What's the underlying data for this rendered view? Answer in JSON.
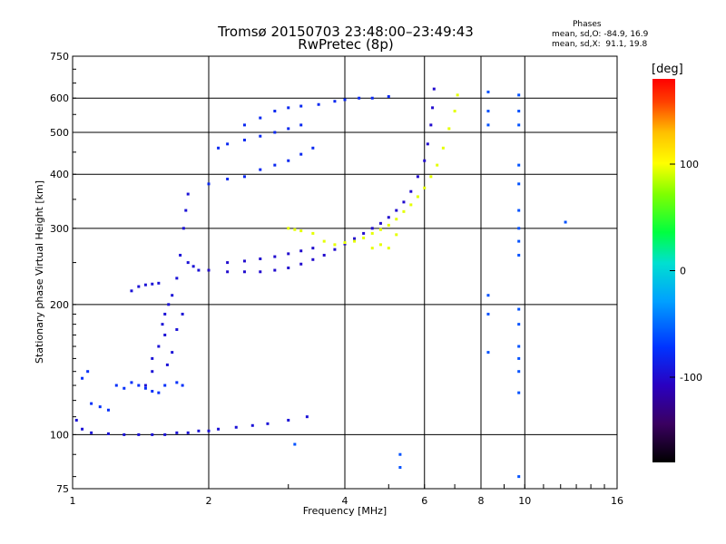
{
  "chart_data": {
    "type": "scatter",
    "title": "Tromsø 20150703 23:48:00–23:49:43",
    "subtitle": "RwPretec (8p)",
    "xlabel": "Frequency [MHz]",
    "ylabel": "Stationary phase Virtual Height [km]",
    "xscale": "log",
    "yscale": "log",
    "xlim": [
      1,
      16
    ],
    "ylim": [
      75,
      750
    ],
    "xticks": [
      1,
      2,
      4,
      6,
      8,
      10,
      16
    ],
    "yticks": [
      75,
      100,
      200,
      300,
      400,
      500,
      600,
      750
    ],
    "grid": true,
    "colorbar": {
      "label": "[deg]",
      "ticks": [
        100,
        0,
        -100
      ],
      "range": [
        -180,
        180
      ],
      "colormap": "rainbow (black-purple-blue-cyan-green-yellow-red)"
    },
    "phase_stats": {
      "heading": "Phases",
      "o_line": "mean, sd,O: -84.9, 16.9",
      "x_line": "mean, sd,X:  91.1, 19.8"
    },
    "series": [
      {
        "role": "E-layer trace (blue)",
        "phase": -95,
        "points": [
          [
            1.02,
            108
          ],
          [
            1.05,
            103
          ],
          [
            1.1,
            101
          ],
          [
            1.2,
            100.5
          ],
          [
            1.3,
            100
          ],
          [
            1.4,
            100
          ],
          [
            1.5,
            100
          ],
          [
            1.6,
            100
          ],
          [
            1.7,
            101
          ],
          [
            1.8,
            101
          ],
          [
            1.9,
            102
          ],
          [
            2.0,
            102
          ],
          [
            2.1,
            103
          ],
          [
            2.3,
            104
          ],
          [
            2.5,
            105
          ],
          [
            2.7,
            106
          ],
          [
            3.0,
            108
          ],
          [
            3.3,
            110
          ]
        ]
      },
      {
        "role": "Es / low-frequency returns (cyan-blue)",
        "phase": -75,
        "points": [
          [
            1.05,
            135
          ],
          [
            1.08,
            140
          ],
          [
            1.1,
            118
          ],
          [
            1.15,
            116
          ],
          [
            1.2,
            114
          ],
          [
            1.25,
            130
          ],
          [
            1.3,
            128
          ],
          [
            1.35,
            132
          ],
          [
            1.4,
            130
          ],
          [
            1.45,
            128
          ],
          [
            1.5,
            126
          ],
          [
            1.55,
            125
          ],
          [
            1.6,
            130
          ],
          [
            1.7,
            132
          ],
          [
            1.75,
            130
          ]
        ]
      },
      {
        "role": "F1 rising branch (blue)",
        "phase": -95,
        "points": [
          [
            1.35,
            215
          ],
          [
            1.4,
            220
          ],
          [
            1.45,
            222
          ],
          [
            1.5,
            223
          ],
          [
            1.55,
            224
          ],
          [
            1.58,
            180
          ],
          [
            1.6,
            190
          ],
          [
            1.63,
            200
          ],
          [
            1.66,
            210
          ],
          [
            1.7,
            230
          ],
          [
            1.73,
            260
          ],
          [
            1.76,
            300
          ],
          [
            1.78,
            330
          ],
          [
            1.8,
            360
          ],
          [
            1.5,
            150
          ],
          [
            1.55,
            160
          ],
          [
            1.6,
            170
          ],
          [
            1.5,
            140
          ],
          [
            1.45,
            130
          ],
          [
            1.62,
            145
          ],
          [
            1.66,
            155
          ],
          [
            1.7,
            175
          ],
          [
            1.75,
            190
          ],
          [
            1.8,
            250
          ],
          [
            1.85,
            245
          ],
          [
            1.9,
            240
          ]
        ]
      },
      {
        "role": "F-layer trace, O-mode (purple-blue)",
        "phase": -100,
        "points": [
          [
            2.0,
            240
          ],
          [
            2.2,
            238
          ],
          [
            2.4,
            238
          ],
          [
            2.6,
            238
          ],
          [
            2.8,
            240
          ],
          [
            3.0,
            243
          ],
          [
            3.2,
            248
          ],
          [
            3.4,
            254
          ],
          [
            3.6,
            260
          ],
          [
            3.8,
            268
          ],
          [
            4.0,
            276
          ],
          [
            4.2,
            284
          ],
          [
            4.4,
            292
          ],
          [
            4.6,
            300
          ],
          [
            4.8,
            308
          ],
          [
            5.0,
            318
          ],
          [
            5.2,
            330
          ],
          [
            5.4,
            345
          ],
          [
            5.6,
            365
          ],
          [
            5.8,
            395
          ],
          [
            6.0,
            430
          ],
          [
            6.1,
            470
          ],
          [
            6.2,
            520
          ],
          [
            6.25,
            570
          ],
          [
            6.3,
            630
          ],
          [
            2.2,
            250
          ],
          [
            2.4,
            252
          ],
          [
            2.6,
            255
          ],
          [
            2.8,
            258
          ],
          [
            3.0,
            262
          ],
          [
            3.2,
            266
          ],
          [
            3.4,
            270
          ]
        ]
      },
      {
        "role": "F-layer trace, X-mode (yellow)",
        "phase": 95,
        "points": [
          [
            3.0,
            300
          ],
          [
            3.1,
            298
          ],
          [
            3.2,
            296
          ],
          [
            3.4,
            292
          ],
          [
            3.6,
            280
          ],
          [
            3.8,
            275
          ],
          [
            4.0,
            278
          ],
          [
            4.2,
            280
          ],
          [
            4.4,
            285
          ],
          [
            4.6,
            292
          ],
          [
            4.8,
            298
          ],
          [
            5.0,
            305
          ],
          [
            5.2,
            315
          ],
          [
            5.4,
            328
          ],
          [
            5.6,
            340
          ],
          [
            5.8,
            355
          ],
          [
            6.0,
            372
          ],
          [
            6.2,
            395
          ],
          [
            6.4,
            420
          ],
          [
            6.6,
            460
          ],
          [
            6.8,
            510
          ],
          [
            7.0,
            560
          ],
          [
            7.1,
            610
          ],
          [
            5.0,
            270
          ],
          [
            5.2,
            290
          ],
          [
            4.6,
            270
          ],
          [
            4.8,
            275
          ]
        ]
      },
      {
        "role": "Multiple-hop echoes (blue-cyan)",
        "phase": -80,
        "points": [
          [
            2.0,
            380
          ],
          [
            2.2,
            390
          ],
          [
            2.4,
            395
          ],
          [
            2.6,
            410
          ],
          [
            2.8,
            420
          ],
          [
            3.0,
            430
          ],
          [
            3.2,
            445
          ],
          [
            3.4,
            460
          ],
          [
            2.1,
            460
          ],
          [
            2.2,
            470
          ],
          [
            2.4,
            480
          ],
          [
            2.6,
            490
          ],
          [
            2.8,
            500
          ],
          [
            3.0,
            510
          ],
          [
            3.2,
            520
          ],
          [
            2.4,
            520
          ],
          [
            2.6,
            540
          ],
          [
            2.8,
            560
          ],
          [
            3.0,
            570
          ],
          [
            3.2,
            575
          ],
          [
            3.5,
            580
          ],
          [
            3.8,
            590
          ],
          [
            4.0,
            595
          ],
          [
            4.3,
            600
          ],
          [
            4.6,
            600
          ],
          [
            5.0,
            605
          ]
        ]
      },
      {
        "role": "Noise columns near 8.3 and 9.7 MHz (mixed)",
        "phase": -60,
        "points": [
          [
            8.3,
            620
          ],
          [
            8.3,
            560
          ],
          [
            8.3,
            520
          ],
          [
            8.3,
            210
          ],
          [
            8.3,
            190
          ],
          [
            8.3,
            155
          ],
          [
            9.7,
            610
          ],
          [
            9.7,
            560
          ],
          [
            9.7,
            520
          ],
          [
            9.7,
            420
          ],
          [
            9.7,
            380
          ],
          [
            9.7,
            330
          ],
          [
            9.7,
            300
          ],
          [
            9.7,
            280
          ],
          [
            9.7,
            260
          ],
          [
            9.7,
            195
          ],
          [
            9.7,
            180
          ],
          [
            9.7,
            160
          ],
          [
            9.7,
            150
          ],
          [
            9.7,
            140
          ],
          [
            9.7,
            125
          ],
          [
            9.7,
            80
          ],
          [
            12.3,
            310
          ],
          [
            5.3,
            84
          ],
          [
            5.3,
            90
          ],
          [
            3.1,
            95
          ]
        ]
      }
    ]
  }
}
